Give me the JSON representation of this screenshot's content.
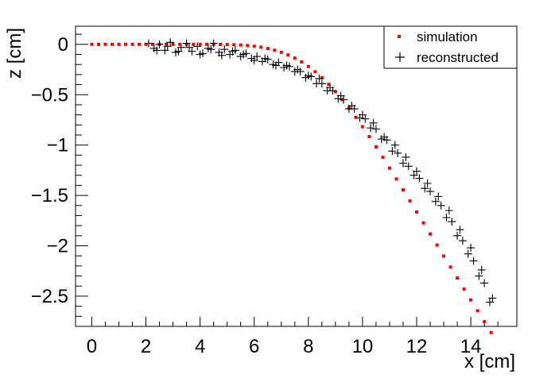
{
  "chart_data": {
    "type": "scatter",
    "xlabel": "x [cm]",
    "ylabel": "z [cm]",
    "xlim": [
      -0.6,
      15.7
    ],
    "ylim": [
      -2.8,
      0.18
    ],
    "xticks": [
      0,
      2,
      4,
      6,
      8,
      10,
      12,
      14
    ],
    "xtick_labels": [
      "0",
      "2",
      "4",
      "6",
      "8",
      "10",
      "12",
      "14"
    ],
    "yticks": [
      0,
      -0.5,
      -1,
      -1.5,
      -2,
      -2.5
    ],
    "ytick_labels": [
      "0",
      "−0.5",
      "−1",
      "−1.5",
      "−2",
      "−2.5"
    ],
    "grid": false,
    "legend_position": "top-right",
    "series": [
      {
        "name": "simulation",
        "marker": "dot",
        "color": "#ff0000",
        "x": [
          0.0,
          0.25,
          0.5,
          0.75,
          1.0,
          1.25,
          1.5,
          1.75,
          2.0,
          2.25,
          2.5,
          2.75,
          3.0,
          3.25,
          3.5,
          3.75,
          4.0,
          4.25,
          4.5,
          4.75,
          5.0,
          5.25,
          5.5,
          5.75,
          6.0,
          6.25,
          6.5,
          6.75,
          7.0,
          7.25,
          7.5,
          7.75,
          8.0,
          8.25,
          8.5,
          8.75,
          9.0,
          9.25,
          9.5,
          9.75,
          10.0,
          10.25,
          10.5,
          10.75,
          11.0,
          11.25,
          11.5,
          11.75,
          12.0,
          12.25,
          12.5,
          12.75,
          13.0,
          13.25,
          13.5,
          13.75,
          14.0,
          14.25,
          14.5,
          14.75
        ],
        "y": [
          0.0,
          0.0,
          0.0,
          0.0,
          0.0,
          0.0,
          0.0,
          0.0,
          0.0,
          0.0,
          0.0,
          0.0,
          0.0,
          0.0,
          0.0,
          0.0,
          0.0,
          0.0,
          0.0,
          -0.001,
          -0.002,
          -0.004,
          -0.007,
          -0.012,
          -0.019,
          -0.028,
          -0.041,
          -0.058,
          -0.079,
          -0.105,
          -0.137,
          -0.175,
          -0.22,
          -0.272,
          -0.331,
          -0.397,
          -0.47,
          -0.549,
          -0.634,
          -0.724,
          -0.818,
          -0.916,
          -1.018,
          -1.122,
          -1.228,
          -1.336,
          -1.445,
          -1.554,
          -1.664,
          -1.773,
          -1.883,
          -1.993,
          -2.102,
          -2.211,
          -2.32,
          -2.429,
          -2.537,
          -2.645,
          -2.753,
          -2.861
        ]
      },
      {
        "name": "reconstructed",
        "marker": "cross",
        "color": "#000000",
        "x": [
          2.1,
          2.3,
          2.5,
          2.7,
          2.9,
          3.1,
          3.3,
          3.5,
          3.7,
          3.9,
          4.1,
          4.3,
          4.5,
          4.7,
          4.9,
          5.1,
          5.3,
          5.5,
          5.7,
          5.9,
          6.1,
          6.3,
          6.5,
          6.7,
          6.9,
          7.1,
          7.3,
          7.5,
          7.7,
          7.9,
          8.1,
          8.3,
          8.5,
          8.7,
          8.9,
          9.1,
          9.3,
          9.5,
          9.7,
          9.9,
          10.1,
          10.3,
          10.5,
          10.7,
          10.9,
          11.1,
          11.3,
          11.5,
          11.7,
          11.9,
          12.1,
          12.3,
          12.5,
          12.7,
          12.9,
          13.1,
          13.3,
          13.5,
          13.7,
          13.9,
          14.1,
          14.3,
          14.5,
          14.7,
          2.4,
          2.8,
          3.2,
          3.6,
          4.0,
          4.4,
          4.8,
          5.2,
          5.6,
          6.0,
          6.4,
          6.8,
          7.2,
          7.6,
          8.0,
          8.4,
          8.8,
          9.2,
          9.6,
          10.0,
          10.4,
          10.8,
          11.2,
          11.6,
          12.0,
          12.4,
          12.8,
          13.2,
          13.6,
          14.0,
          14.4,
          14.8
        ],
        "y": [
          0.01,
          -0.04,
          0.0,
          -0.06,
          0.02,
          -0.08,
          -0.03,
          0.01,
          -0.07,
          -0.02,
          -0.09,
          -0.04,
          0.01,
          -0.08,
          -0.05,
          -0.1,
          -0.06,
          -0.12,
          -0.09,
          -0.14,
          -0.12,
          -0.17,
          -0.15,
          -0.2,
          -0.18,
          -0.23,
          -0.22,
          -0.27,
          -0.27,
          -0.33,
          -0.32,
          -0.39,
          -0.39,
          -0.46,
          -0.46,
          -0.54,
          -0.55,
          -0.64,
          -0.64,
          -0.73,
          -0.74,
          -0.83,
          -0.84,
          -0.94,
          -0.95,
          -1.06,
          -1.08,
          -1.18,
          -1.21,
          -1.3,
          -1.33,
          -1.43,
          -1.46,
          -1.56,
          -1.6,
          -1.72,
          -1.76,
          -1.9,
          -1.95,
          -2.08,
          -2.15,
          -2.3,
          -2.37,
          -2.56,
          -0.06,
          -0.02,
          -0.07,
          -0.03,
          -0.1,
          -0.05,
          -0.11,
          -0.07,
          -0.1,
          -0.16,
          -0.14,
          -0.21,
          -0.21,
          -0.25,
          -0.31,
          -0.34,
          -0.43,
          -0.51,
          -0.61,
          -0.7,
          -0.78,
          -0.92,
          -1.0,
          -1.12,
          -1.26,
          -1.38,
          -1.51,
          -1.65,
          -1.84,
          -2.02,
          -2.24,
          -2.52
        ]
      }
    ]
  }
}
